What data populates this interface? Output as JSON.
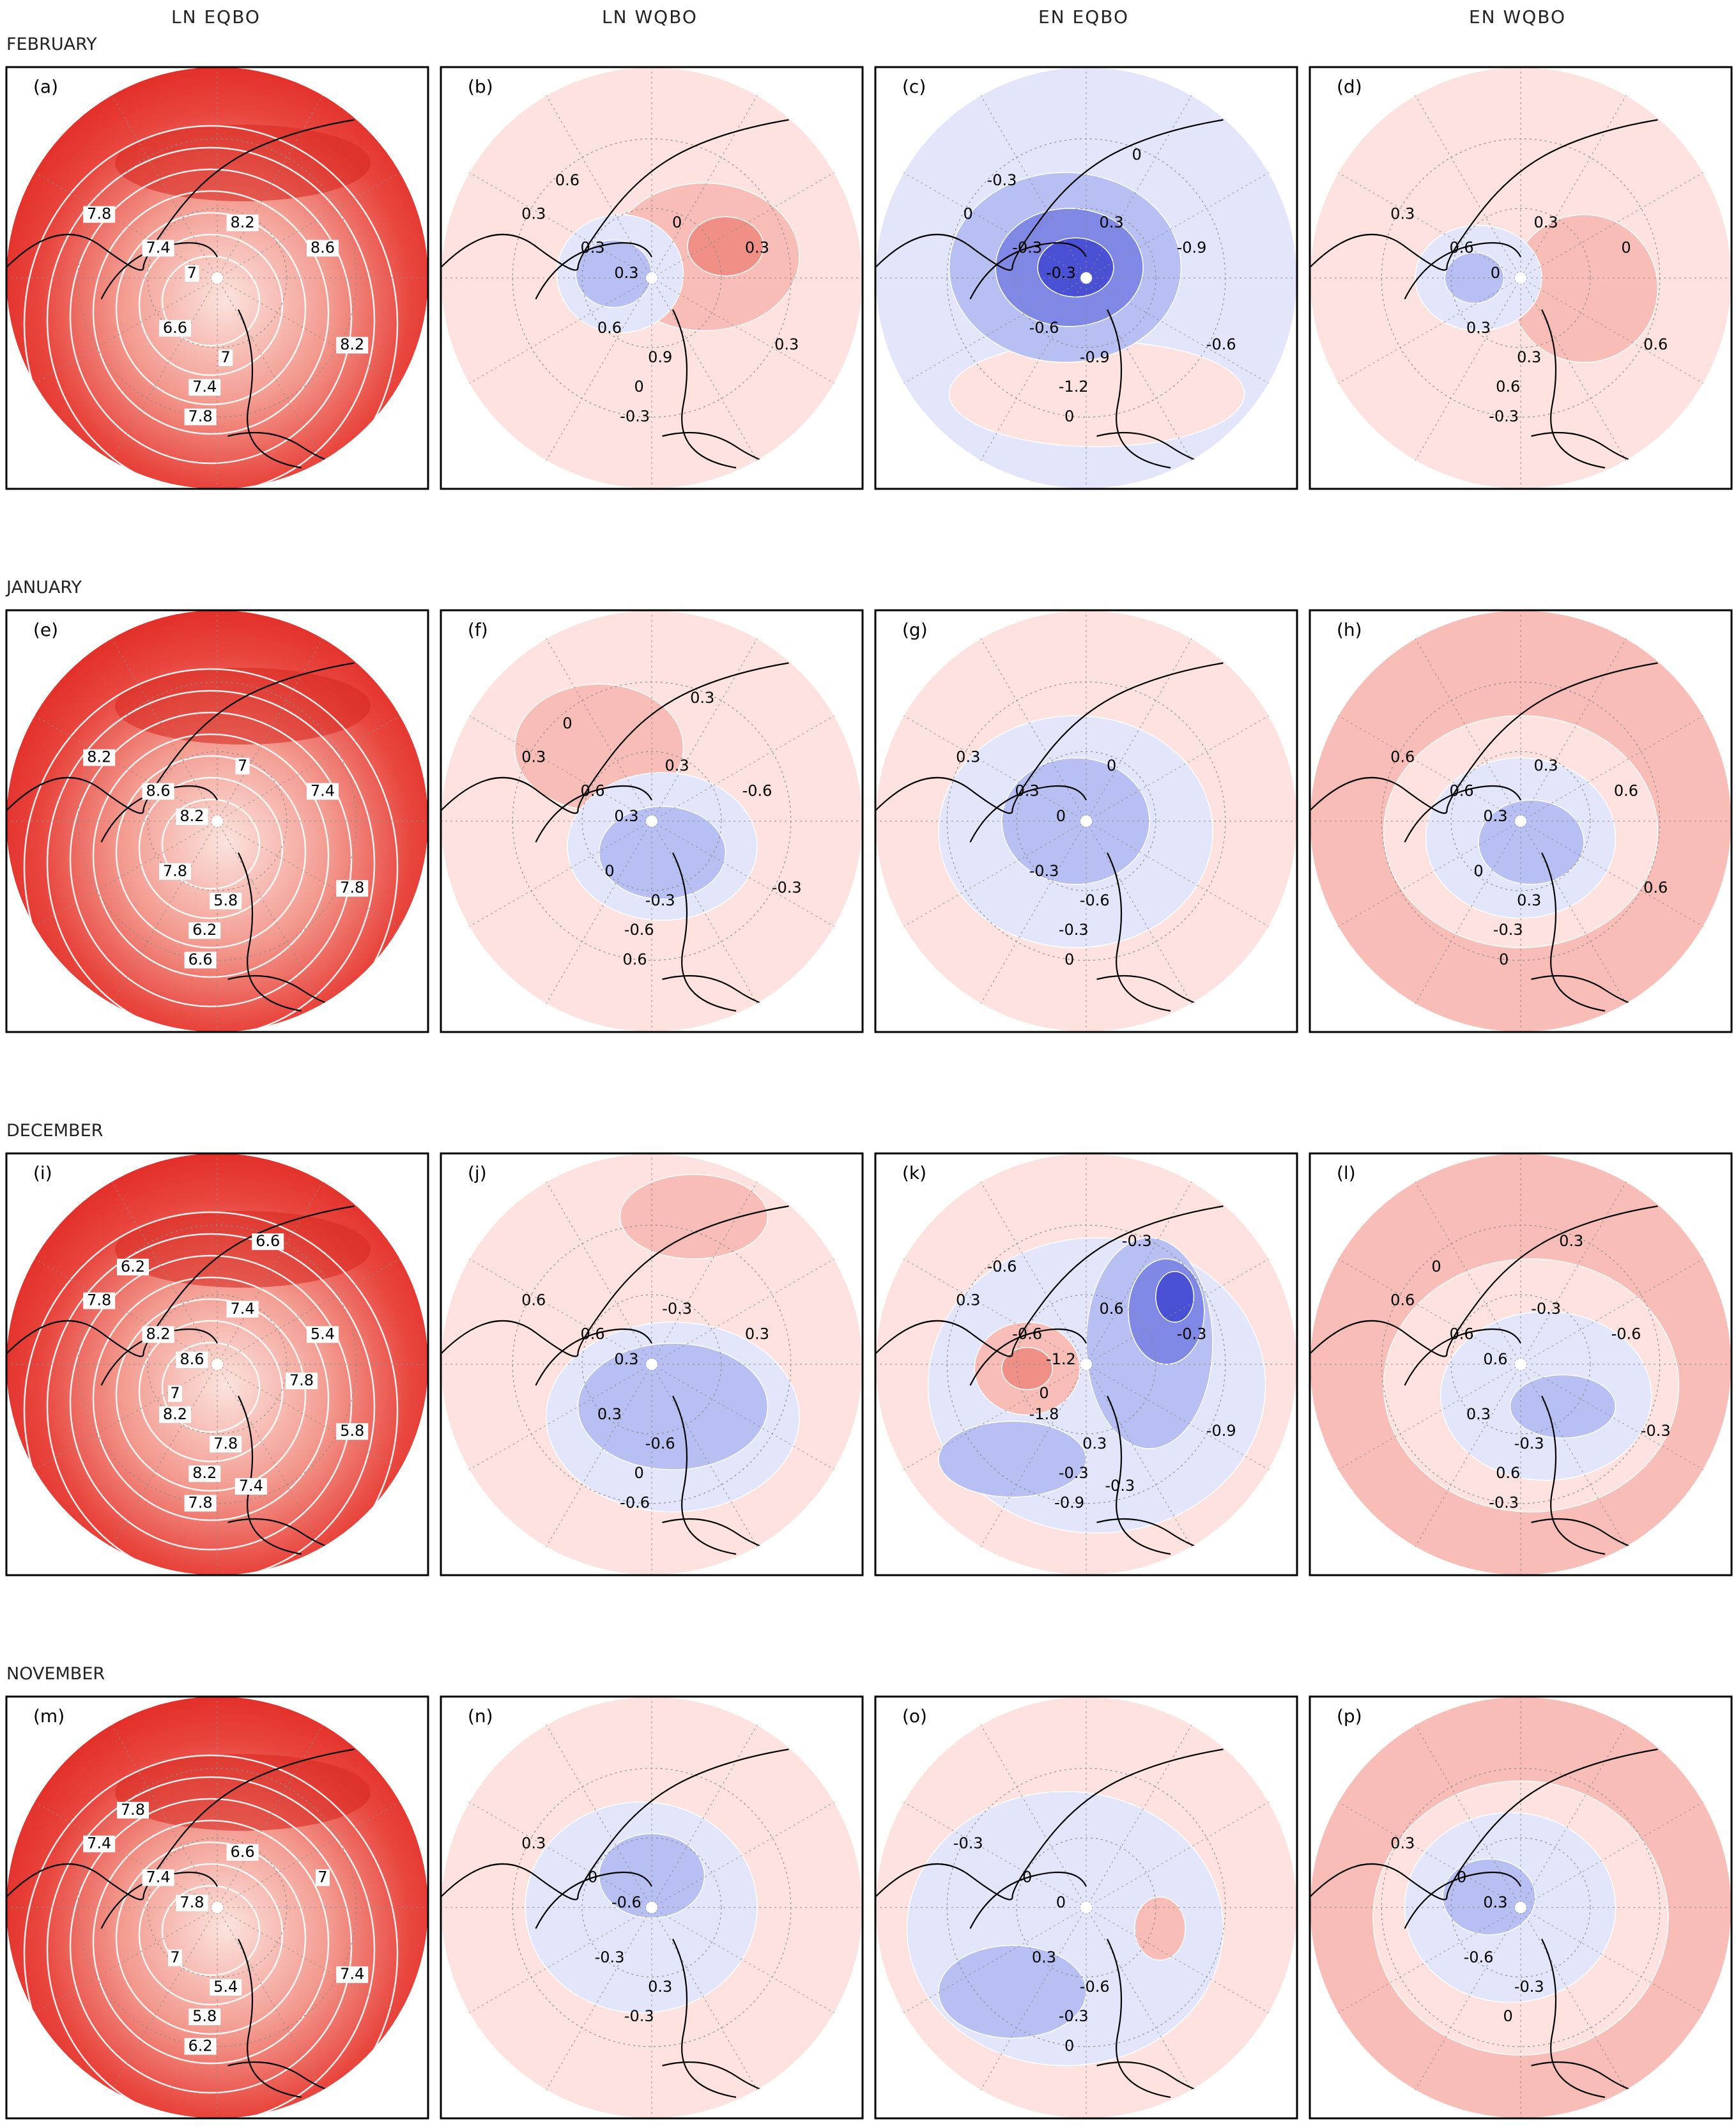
{
  "columns": [
    "LN EQBO",
    "LN WQBO",
    "EN EQBO",
    "EN WQBO"
  ],
  "months": [
    "FEBRUARY",
    "JANUARY",
    "DECEMBER",
    "NOVEMBER"
  ],
  "panels": [
    {
      "letter": "(a)",
      "style": "clim",
      "labels": [
        "7.8",
        "7.4",
        "7",
        "6.6",
        "7",
        "7.4",
        "7.8",
        "8.2",
        "8.6",
        "8.2"
      ]
    },
    {
      "letter": "(b)",
      "style": "anom",
      "labels": [
        "0.3",
        "0.3",
        "0.3",
        "0.6",
        "0.9",
        "0",
        "-0.3",
        "0",
        "0.3",
        "0.3",
        "0.6"
      ]
    },
    {
      "letter": "(c)",
      "style": "anom",
      "labels": [
        "0",
        "-0.3",
        "-0.3",
        "-0.6",
        "-0.9",
        "-1.2",
        "0",
        "0.3",
        "-0.9",
        "-0.6",
        "-0.3",
        "0"
      ]
    },
    {
      "letter": "(d)",
      "style": "anom",
      "labels": [
        "0.3",
        "0.6",
        "0",
        "0.3",
        "0.3",
        "0.6",
        "-0.3",
        "0.3",
        "0",
        "0.6"
      ]
    },
    {
      "letter": "(e)",
      "style": "clim",
      "labels": [
        "8.2",
        "8.6",
        "8.2",
        "7.8",
        "5.8",
        "6.2",
        "6.6",
        "7",
        "7.4",
        "7.8"
      ]
    },
    {
      "letter": "(f)",
      "style": "anom",
      "labels": [
        "0.3",
        "0.6",
        "0.3",
        "0",
        "-0.3",
        "-0.6",
        "0.6",
        "0.3",
        "-0.6",
        "-0.3",
        "0",
        "0.3"
      ]
    },
    {
      "letter": "(g)",
      "style": "anom",
      "labels": [
        "0.3",
        "0.3",
        "0",
        "-0.3",
        "-0.6",
        "-0.3",
        "0",
        "0"
      ]
    },
    {
      "letter": "(h)",
      "style": "anom",
      "labels": [
        "0.6",
        "0.6",
        "0.3",
        "0",
        "0.3",
        "-0.3",
        "0",
        "0.3",
        "0.6",
        "0.6"
      ]
    },
    {
      "letter": "(i)",
      "style": "clim",
      "labels": [
        "7.8",
        "8.2",
        "8.6",
        "8.2",
        "7.8",
        "8.2",
        "7.8",
        "7.4",
        "5.4",
        "5.8",
        "6.2",
        "6.6",
        "7",
        "7.4",
        "7.8"
      ]
    },
    {
      "letter": "(j)",
      "style": "anom",
      "labels": [
        "0.6",
        "0.6",
        "0.3",
        "0.3",
        "-0.6",
        "0",
        "-0.6",
        "-0.3",
        "0.3"
      ]
    },
    {
      "letter": "(k)",
      "style": "anom",
      "labels": [
        "0.3",
        "-0.6",
        "-1.2",
        "-1.8",
        "0.3",
        "-0.3",
        "-0.9",
        "0.6",
        "-0.3",
        "-0.9",
        "-0.6",
        "-0.3",
        "0",
        "-0.3"
      ]
    },
    {
      "letter": "(l)",
      "style": "anom",
      "labels": [
        "0.6",
        "0.6",
        "0.6",
        "0.3",
        "-0.3",
        "0.6",
        "-0.3",
        "-0.3",
        "-0.6",
        "-0.3",
        "0",
        "0.3"
      ]
    },
    {
      "letter": "(m)",
      "style": "clim",
      "labels": [
        "7.4",
        "7.4",
        "7.8",
        "7",
        "5.4",
        "5.8",
        "6.2",
        "6.6",
        "7",
        "7.4",
        "7.8"
      ]
    },
    {
      "letter": "(n)",
      "style": "anom",
      "labels": [
        "0.3",
        "0",
        "-0.6",
        "-0.3",
        "0.3",
        "-0.3"
      ]
    },
    {
      "letter": "(o)",
      "style": "anom",
      "labels": [
        "-0.3",
        "0",
        "0",
        "0.3",
        "-0.6",
        "-0.3",
        "0"
      ]
    },
    {
      "letter": "(p)",
      "style": "anom",
      "labels": [
        "0.3",
        "0",
        "0.3",
        "-0.6",
        "-0.3",
        "0"
      ]
    }
  ],
  "colors": {
    "clim_outer": "#e8322c",
    "clim_inner": "#f7b8b0",
    "anom_red_1": "#fde2df",
    "anom_red_2": "#f7bdb6",
    "anom_red_3": "#ef8f86",
    "anom_blue_1": "#e3e6fb",
    "anom_blue_2": "#b8bff2",
    "anom_blue_3": "#8088e6",
    "anom_blue_4": "#4a50d4",
    "frame": "#000000"
  }
}
